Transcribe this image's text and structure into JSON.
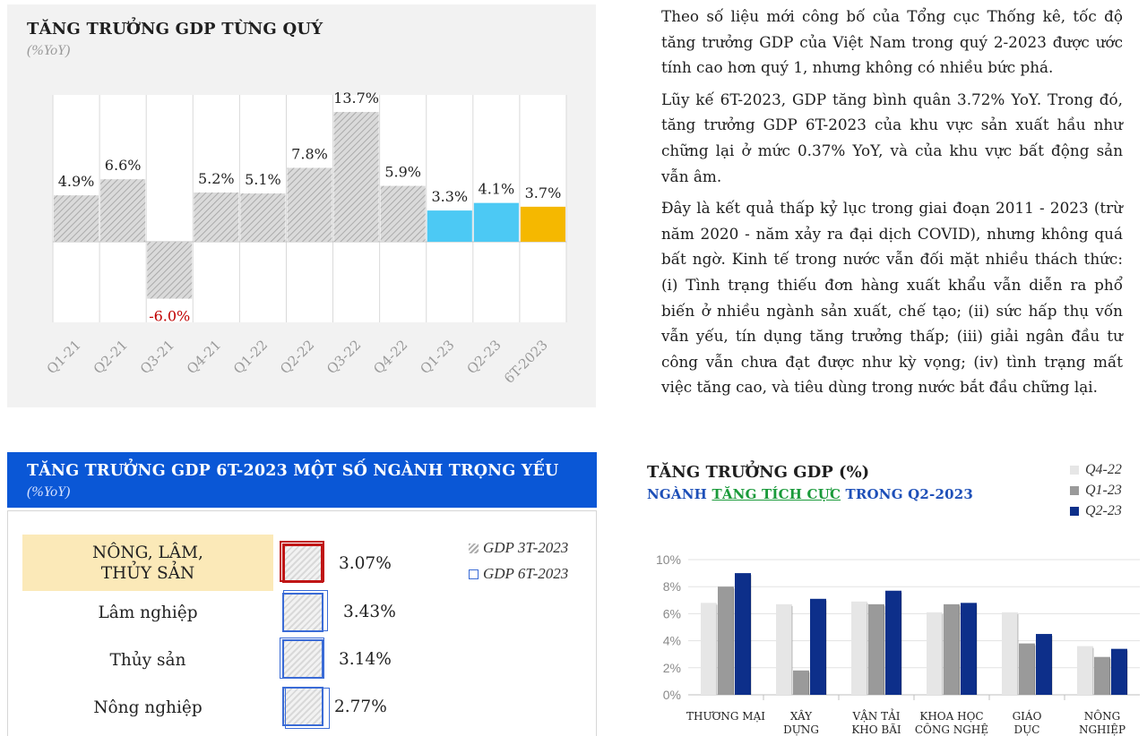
{
  "panel1": {
    "title": "TĂNG TRƯỞNG GDP TỪNG QUÝ",
    "unit": "(%YoY)",
    "chart_data": {
      "type": "bar",
      "categories": [
        "Q1-21",
        "Q2-21",
        "Q3-21",
        "Q4-21",
        "Q1-22",
        "Q2-22",
        "Q3-22",
        "Q4-22",
        "Q1-23",
        "Q2-23",
        "6T-2023"
      ],
      "values": [
        4.9,
        6.6,
        -6.0,
        5.2,
        5.1,
        7.8,
        13.7,
        5.9,
        3.3,
        4.1,
        3.7
      ],
      "data_labels": [
        "4.9%",
        "6.6%",
        "-6.0%",
        "5.2%",
        "5.1%",
        "7.8%",
        "13.7%",
        "5.9%",
        "3.3%",
        "4.1%",
        "3.7%"
      ],
      "bar_styles": [
        "hatch",
        "hatch",
        "hatch",
        "hatch",
        "hatch",
        "hatch",
        "hatch",
        "hatch",
        "blue",
        "blue",
        "gold"
      ],
      "colors": {
        "hatch": "#c9c9c9",
        "blue": "#4cc9f4",
        "gold": "#f5b800",
        "negative_label": "#c00000"
      },
      "title": "TĂNG TRƯỞNG GDP TỪNG QUÝ",
      "ylabel": "",
      "ylim": [
        -8.5,
        15.5
      ],
      "grid": true
    }
  },
  "text": {
    "p1": "Theo số liệu mới công bố của Tổng cục Thống kê, tốc độ tăng trưởng GDP của Việt Nam trong quý 2-2023 được ước tính cao hơn quý 1, nhưng không có nhiều bức phá.",
    "p2": "Lũy kế 6T-2023, GDP tăng bình quân 3.72% YoY. Trong đó, tăng trưởng GDP 6T-2023 của khu vực sản xuất hầu như chững lại ở mức 0.37% YoY, và của khu vực bất động sản vẫn âm.",
    "p3": "Đây là kết quả thấp kỷ lục trong giai đoạn 2011 - 2023 (trừ năm 2020 - năm xảy ra đại dịch COVID), nhưng không quá bất ngờ. Kinh tế trong nước vẫn đối mặt nhiều thách thức: (i) Tình trạng thiếu đơn hàng xuất khẩu vẫn diễn ra phổ biến ở nhiều ngành sản xuất, chế tạo; (ii) sức hấp thụ vốn vẫn yếu, tín dụng tăng trưởng thấp; (iii) giải ngân đầu tư công vẫn chưa đạt được như kỳ vọng; (iv) tình trạng mất việc tăng cao, và tiêu dùng trong nước bắt đầu chững lại."
  },
  "panel3": {
    "title": "TĂNG TRƯỞNG GDP 6T-2023 MỘT SỐ NGÀNH TRỌNG YẾU",
    "unit": "(%YoY)",
    "legend": {
      "gdp3t": "GDP 3T-2023",
      "gdp6t": "GDP 6T-2023"
    },
    "colors": {
      "highlight_bg": "#fbe9b8",
      "outline_blue": "#3a6bd6",
      "outline_red": "#c01515"
    },
    "chart_data": {
      "type": "table",
      "rows": [
        {
          "label_line1": "NÔNG, LÂM,",
          "label_line2": "THỦY SẢN",
          "value_label": "3.07%",
          "value": 3.07
        },
        {
          "label": "Lâm nghiệp",
          "value_label": "3.43%",
          "value": 3.43
        },
        {
          "label": "Thủy sản",
          "value_label": "3.14%",
          "value": 3.14
        },
        {
          "label": "Nông nghiệp",
          "value_label": "2.77%",
          "value": 2.77
        }
      ]
    }
  },
  "panel4": {
    "title": "TĂNG TRƯỞNG GDP (%)",
    "subtitle_pre": "NGÀNH ",
    "subtitle_hl": "TĂNG TÍCH CỰC",
    "subtitle_post": " TRONG Q2-2023",
    "chart_data": {
      "type": "bar",
      "categories": [
        [
          "THƯƠNG MẠI"
        ],
        [
          "XÂY",
          "DỰNG"
        ],
        [
          "VẬN TẢI",
          "KHO BÃI"
        ],
        [
          "KHOA HỌC",
          "CÔNG NGHỆ"
        ],
        [
          "GIÁO",
          "DỤC"
        ],
        [
          "NÔNG",
          "NGHIỆP"
        ]
      ],
      "series": [
        {
          "name": "Q4-22",
          "color": "#e6e6e6",
          "values": [
            6.8,
            6.7,
            6.9,
            6.1,
            6.1,
            3.6
          ]
        },
        {
          "name": "Q1-23",
          "color": "#9a9a9a",
          "values": [
            8.0,
            1.8,
            6.7,
            6.7,
            3.8,
            2.8
          ]
        },
        {
          "name": "Q2-23",
          "color": "#0d2f8a",
          "values": [
            9.0,
            7.1,
            7.7,
            6.8,
            4.5,
            3.4
          ]
        }
      ],
      "yticks": [
        "0%",
        "2%",
        "4%",
        "6%",
        "8%",
        "10%"
      ],
      "ylim": [
        0,
        10
      ],
      "grid": true,
      "legend_position": "top-right"
    }
  }
}
